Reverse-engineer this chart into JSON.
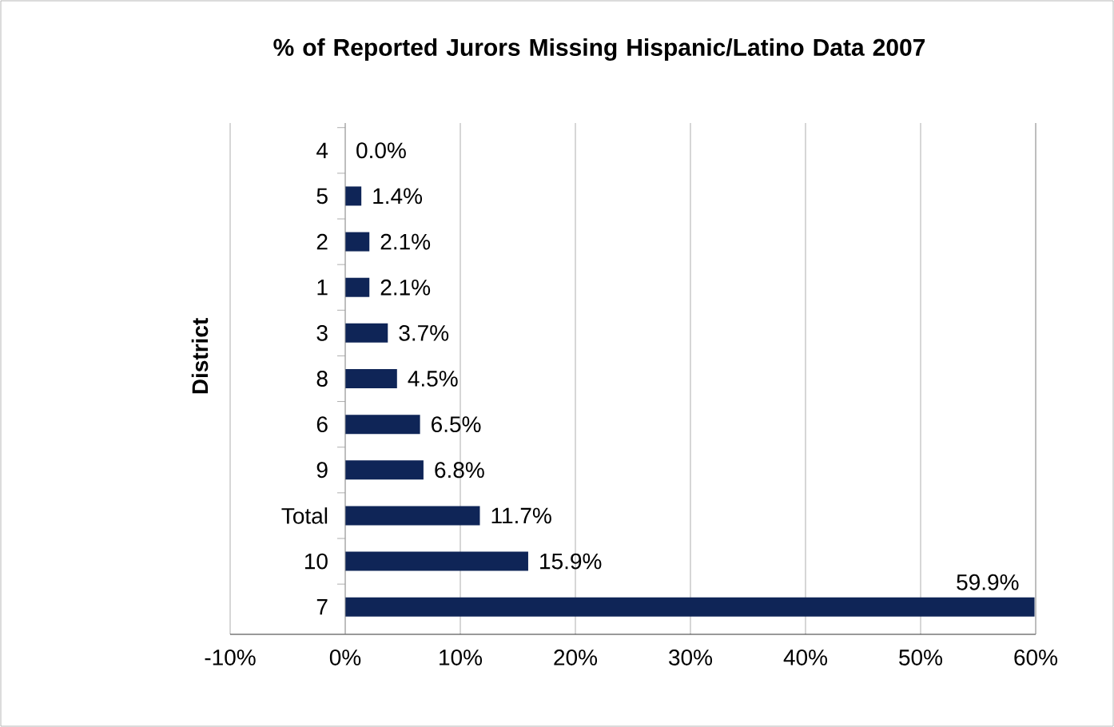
{
  "chart_data": {
    "type": "bar",
    "orientation": "horizontal",
    "title": "% of Reported Jurors Missing Hispanic/Latino Data 2007",
    "ylabel": "District",
    "categories": [
      "4",
      "5",
      "2",
      "1",
      "3",
      "8",
      "6",
      "9",
      "Total",
      "10",
      "7"
    ],
    "values": [
      0.0,
      1.4,
      2.1,
      2.1,
      3.7,
      4.5,
      6.5,
      6.8,
      11.7,
      15.9,
      59.9
    ],
    "value_labels": [
      "0.0%",
      "1.4%",
      "2.1%",
      "2.1%",
      "3.7%",
      "4.5%",
      "6.5%",
      "6.8%",
      "11.7%",
      "15.9%",
      "59.9%"
    ],
    "color": "#0f2557",
    "xlim": [
      -10,
      60
    ],
    "xticks": [
      {
        "value": -10,
        "label": "-10%"
      },
      {
        "value": 0,
        "label": "0%"
      },
      {
        "value": 10,
        "label": "10%"
      },
      {
        "value": 20,
        "label": "20%"
      },
      {
        "value": 30,
        "label": "30%"
      },
      {
        "value": 40,
        "label": "40%"
      },
      {
        "value": 50,
        "label": "50%"
      },
      {
        "value": 60,
        "label": "60%"
      }
    ],
    "grid": "x"
  }
}
